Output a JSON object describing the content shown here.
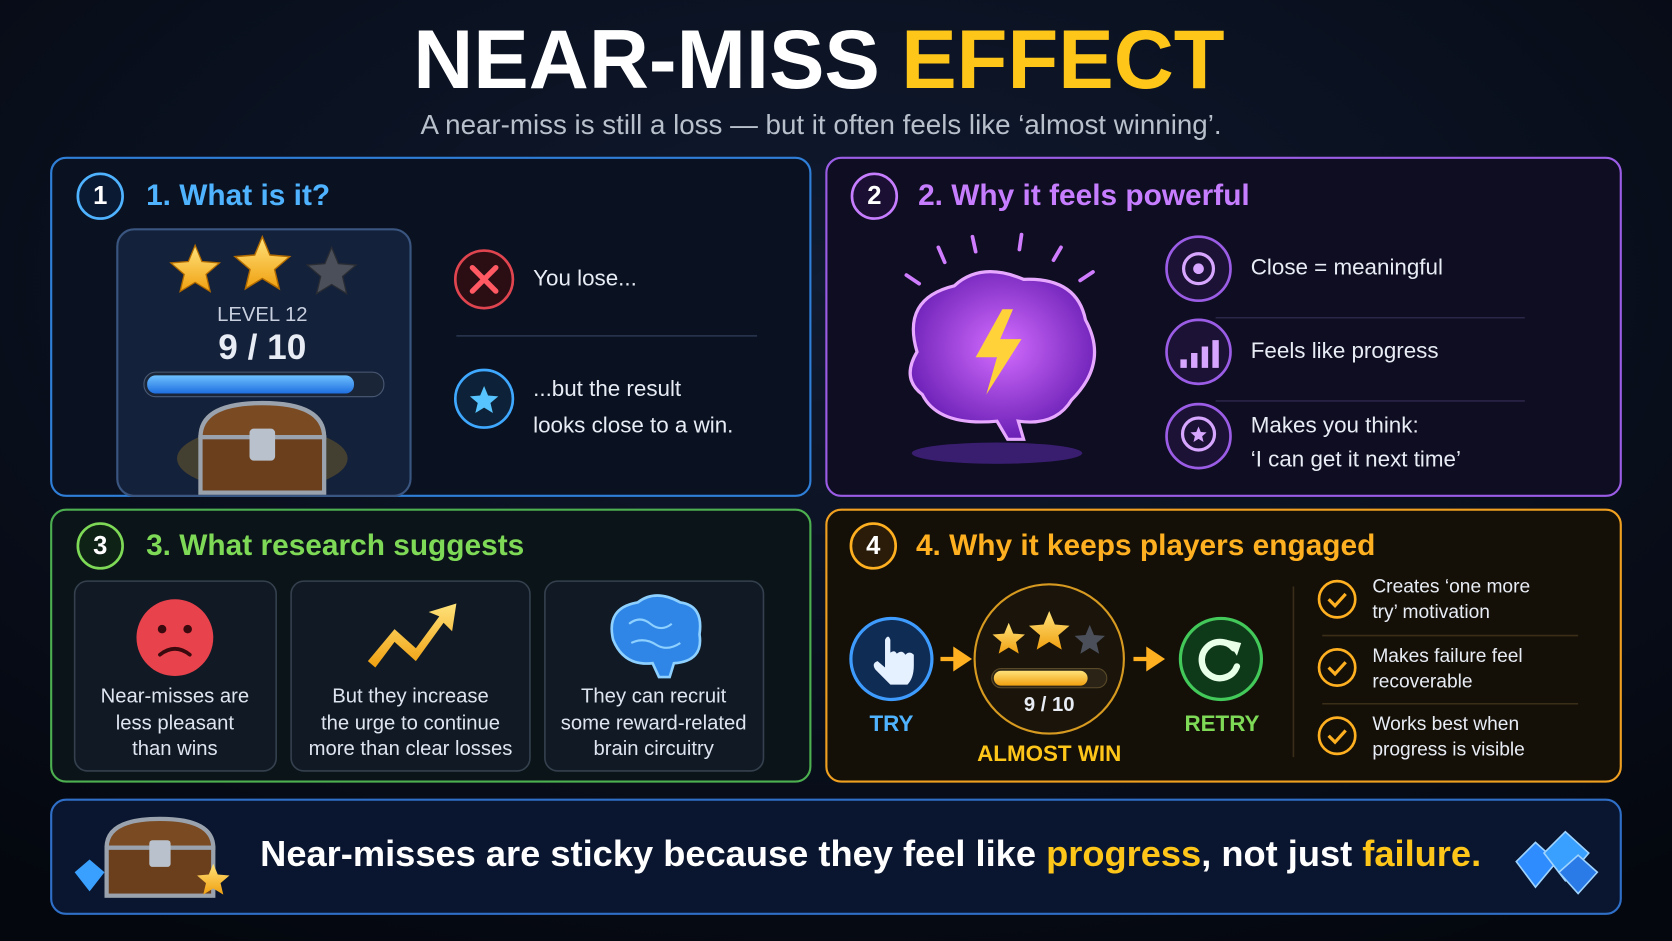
{
  "header": {
    "title": "NEAR-MISS",
    "title_highlight": "EFFECT",
    "subtitle": "A near-miss is still a loss — but it often feels like ‘almost winning’."
  },
  "sections": [
    {
      "number": "1",
      "title": "1. What is it?",
      "card": {
        "level": "LEVEL 12",
        "score": "9 / 10"
      },
      "items": [
        [
          "You lose..."
        ],
        [
          "...but the result",
          "looks close to a win."
        ]
      ]
    },
    {
      "number": "2",
      "title": "2. Why it feels powerful",
      "items": [
        [
          "Close = meaningful"
        ],
        [
          "Feels like progress"
        ],
        [
          "Makes you think:",
          "‘I can get it next time’"
        ]
      ]
    },
    {
      "number": "3",
      "title": "3. What research suggests",
      "cards": [
        [
          "Near-misses are",
          "less pleasant",
          "than wins"
        ],
        [
          "But they increase",
          "the urge to continue",
          "more than clear losses"
        ],
        [
          "They can recruit",
          "some reward-related",
          "brain circuitry"
        ]
      ]
    },
    {
      "number": "4",
      "title": "4. Why it keeps players engaged",
      "steps": {
        "try": "TRY",
        "score": "9 / 10",
        "almost": "ALMOST WIN",
        "retry": "RETRY"
      },
      "checks": [
        [
          "Creates ‘one more",
          "try’ motivation"
        ],
        [
          "Makes failure feel",
          "recoverable"
        ],
        [
          "Works best when",
          "progress is visible"
        ]
      ]
    }
  ],
  "footer": {
    "parts": [
      "Near-misses are sticky because they feel like ",
      "progress",
      ", not just ",
      "failure."
    ]
  }
}
